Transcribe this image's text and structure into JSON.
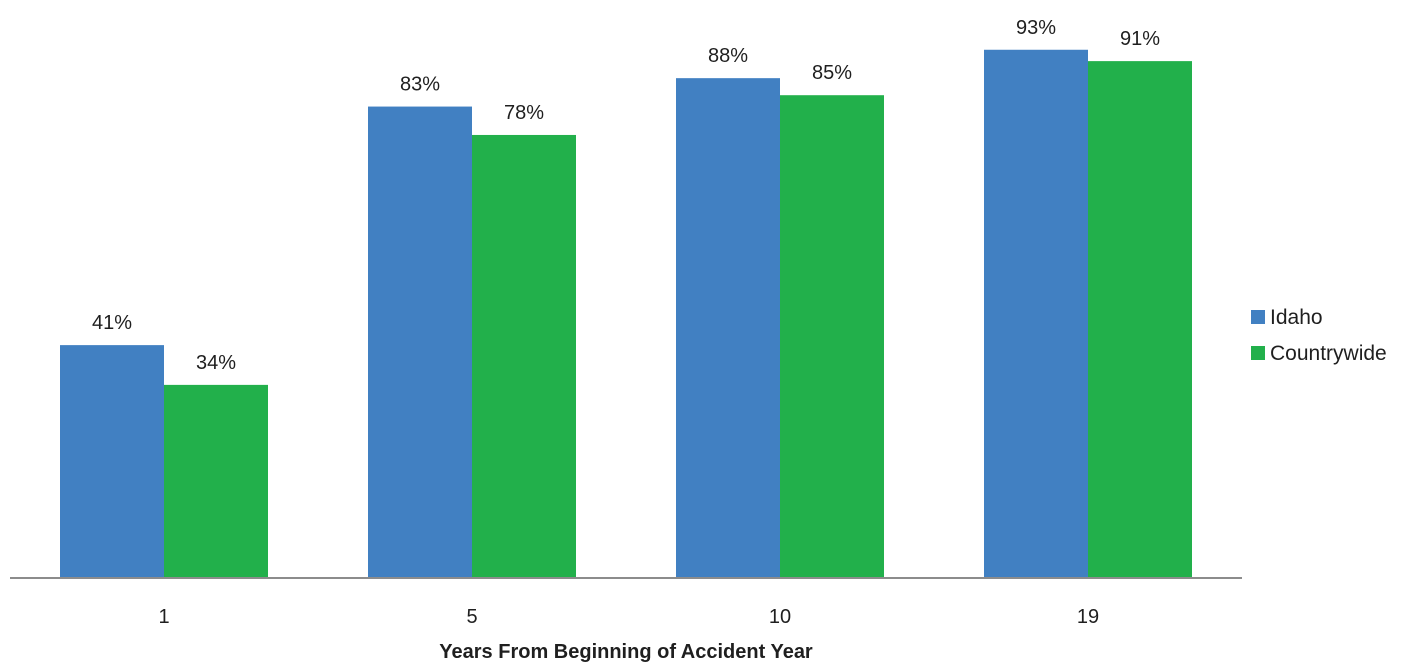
{
  "chart_data": {
    "type": "bar",
    "title": "",
    "xlabel": "Years From Beginning of Accident Year",
    "ylabel": "",
    "categories": [
      "1",
      "5",
      "10",
      "19"
    ],
    "series": [
      {
        "name": "Idaho",
        "color": "#4180C2",
        "values": [
          41,
          83,
          88,
          93
        ],
        "labels": [
          "41%",
          "83%",
          "88%",
          "93%"
        ]
      },
      {
        "name": "Countrywide",
        "color": "#22B04B",
        "values": [
          34,
          78,
          85,
          91
        ],
        "labels": [
          "34%",
          "78%",
          "85%",
          "91%"
        ]
      }
    ],
    "ylim": [
      0,
      100
    ],
    "value_format": "percent",
    "grid": false,
    "legend_position": "right"
  }
}
